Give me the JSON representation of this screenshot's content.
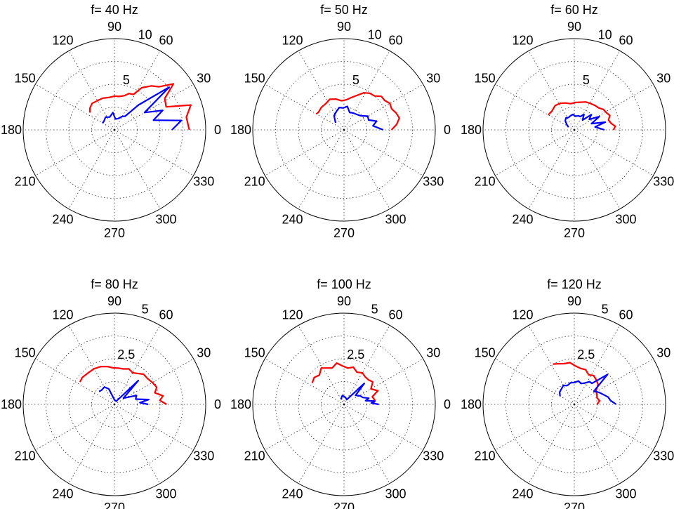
{
  "colors": {
    "red_series": "#ff0000",
    "blue_series": "#0000ff",
    "axis": "#000000",
    "background": "#ffffff"
  },
  "chart_data": [
    {
      "type": "polar",
      "title": "f= 40 Hz",
      "rlim": [
        0,
        10
      ],
      "rticks": [
        "5",
        "10"
      ],
      "angle_ticks": [
        "0",
        "30",
        "60",
        "90",
        "120",
        "150",
        "180",
        "210",
        "240",
        "270",
        "300",
        "330"
      ],
      "grid": true,
      "series": [
        {
          "color": "red",
          "points": [
            [
              0,
              8.2
            ],
            [
              10,
              8.0
            ],
            [
              18,
              8.8
            ],
            [
              24,
              6.2
            ],
            [
              32,
              6.5
            ],
            [
              38,
              8.2
            ],
            [
              44,
              6.8
            ],
            [
              50,
              6.3
            ],
            [
              57,
              5.5
            ],
            [
              62,
              4.4
            ],
            [
              68,
              4.3
            ],
            [
              74,
              3.9
            ],
            [
              82,
              3.7
            ],
            [
              90,
              3.7
            ],
            [
              100,
              3.6
            ],
            [
              110,
              3.7
            ],
            [
              120,
              3.7
            ],
            [
              130,
              3.8
            ],
            [
              138,
              3.6
            ],
            [
              145,
              3.3
            ]
          ]
        },
        {
          "color": "blue",
          "points": [
            [
              0,
              6.3
            ],
            [
              8,
              7.4
            ],
            [
              14,
              4.4
            ],
            [
              22,
              5.7
            ],
            [
              30,
              3.8
            ],
            [
              38,
              7.6
            ],
            [
              46,
              3.8
            ],
            [
              52,
              1.9
            ],
            [
              60,
              1.7
            ],
            [
              72,
              1.3
            ],
            [
              85,
              1.2
            ],
            [
              95,
              1.9
            ],
            [
              110,
              1.5
            ],
            [
              125,
              1.7
            ],
            [
              140,
              1.5
            ],
            [
              150,
              1.5
            ]
          ]
        }
      ]
    },
    {
      "type": "polar",
      "title": "f= 50 Hz",
      "rlim": [
        0,
        10
      ],
      "rticks": [
        "5",
        "10"
      ],
      "angle_ticks": [
        "0",
        "30",
        "60",
        "90",
        "120",
        "150",
        "180",
        "210",
        "240",
        "270",
        "300",
        "330"
      ],
      "grid": true,
      "series": [
        {
          "color": "red",
          "points": [
            [
              0,
              5.2
            ],
            [
              6,
              5.8
            ],
            [
              12,
              6.2
            ],
            [
              18,
              6.0
            ],
            [
              24,
              5.7
            ],
            [
              30,
              5.8
            ],
            [
              36,
              5.5
            ],
            [
              42,
              5.5
            ],
            [
              48,
              5.0
            ],
            [
              55,
              4.9
            ],
            [
              62,
              4.6
            ],
            [
              70,
              4.0
            ],
            [
              78,
              3.6
            ],
            [
              86,
              3.3
            ],
            [
              95,
              3.2
            ],
            [
              105,
              3.5
            ],
            [
              115,
              3.7
            ],
            [
              125,
              3.5
            ],
            [
              135,
              3.5
            ],
            [
              145,
              3.4
            ],
            [
              150,
              3.5
            ]
          ]
        },
        {
          "color": "blue",
          "points": [
            [
              0,
              4.3
            ],
            [
              8,
              3.2
            ],
            [
              15,
              3.7
            ],
            [
              22,
              2.9
            ],
            [
              30,
              3.0
            ],
            [
              40,
              2.4
            ],
            [
              50,
              2.2
            ],
            [
              62,
              2.1
            ],
            [
              72,
              2.0
            ],
            [
              82,
              2.6
            ],
            [
              92,
              2.4
            ],
            [
              102,
              2.5
            ],
            [
              112,
              2.2
            ],
            [
              125,
              1.9
            ],
            [
              140,
              1.2
            ]
          ]
        }
      ]
    },
    {
      "type": "polar",
      "title": "f= 60 Hz",
      "rlim": [
        0,
        10
      ],
      "rticks": [
        "5",
        "10"
      ],
      "angle_ticks": [
        "0",
        "30",
        "60",
        "90",
        "120",
        "150",
        "180",
        "210",
        "240",
        "270",
        "300",
        "330"
      ],
      "grid": true,
      "series": [
        {
          "color": "red",
          "points": [
            [
              0,
              4.3
            ],
            [
              5,
              4.5
            ],
            [
              10,
              4.1
            ],
            [
              16,
              3.9
            ],
            [
              22,
              4.2
            ],
            [
              28,
              4.0
            ],
            [
              35,
              3.9
            ],
            [
              42,
              3.6
            ],
            [
              50,
              3.5
            ],
            [
              58,
              3.4
            ],
            [
              68,
              3.3
            ],
            [
              78,
              3.1
            ],
            [
              88,
              3.0
            ],
            [
              98,
              2.9
            ],
            [
              108,
              3.1
            ],
            [
              118,
              3.3
            ],
            [
              128,
              3.4
            ],
            [
              140,
              3.2
            ],
            [
              150,
              3.3
            ]
          ]
        },
        {
          "color": "blue",
          "points": [
            [
              0,
              3.3
            ],
            [
              8,
              2.3
            ],
            [
              14,
              3.5
            ],
            [
              20,
              2.0
            ],
            [
              28,
              3.1
            ],
            [
              35,
              2.0
            ],
            [
              42,
              2.5
            ],
            [
              50,
              1.4
            ],
            [
              58,
              2.0
            ],
            [
              66,
              1.6
            ],
            [
              75,
              1.6
            ],
            [
              85,
              1.5
            ],
            [
              95,
              1.7
            ],
            [
              105,
              1.6
            ],
            [
              115,
              1.5
            ],
            [
              125,
              1.6
            ],
            [
              135,
              1.4
            ],
            [
              145,
              1.0
            ],
            [
              155,
              0.7
            ]
          ]
        }
      ]
    },
    {
      "type": "polar",
      "title": "f= 80 Hz",
      "rlim": [
        0,
        5
      ],
      "rticks": [
        "2.5",
        "5"
      ],
      "angle_ticks": [
        "0",
        "30",
        "60",
        "90",
        "120",
        "150",
        "180",
        "210",
        "240",
        "270",
        "300",
        "330"
      ],
      "grid": true,
      "series": [
        {
          "color": "red",
          "points": [
            [
              0,
              2.85
            ],
            [
              5,
              2.5
            ],
            [
              10,
              2.7
            ],
            [
              16,
              2.3
            ],
            [
              22,
              2.5
            ],
            [
              30,
              2.4
            ],
            [
              38,
              2.3
            ],
            [
              46,
              2.3
            ],
            [
              54,
              2.1
            ],
            [
              60,
              2.0
            ],
            [
              68,
              2.1
            ],
            [
              76,
              2.0
            ],
            [
              84,
              2.0
            ],
            [
              92,
              2.0
            ],
            [
              100,
              2.1
            ],
            [
              110,
              2.2
            ],
            [
              120,
              2.25
            ],
            [
              130,
              2.25
            ],
            [
              140,
              2.3
            ],
            [
              147,
              2.25
            ]
          ]
        },
        {
          "color": "blue",
          "points": [
            [
              0,
              1.85
            ],
            [
              4,
              1.4
            ],
            [
              8,
              1.9
            ],
            [
              14,
              1.2
            ],
            [
              22,
              1.3
            ],
            [
              35,
              0.6
            ],
            [
              45,
              1.85
            ],
            [
              60,
              0.2
            ],
            [
              90,
              0.25
            ],
            [
              110,
              0.9
            ],
            [
              120,
              1.1
            ],
            [
              132,
              1.05
            ],
            [
              140,
              1.1
            ]
          ]
        }
      ]
    },
    {
      "type": "polar",
      "title": "f= 100 Hz",
      "rlim": [
        0,
        5
      ],
      "rticks": [
        "2.5",
        "5"
      ],
      "angle_ticks": [
        "0",
        "30",
        "60",
        "90",
        "120",
        "150",
        "180",
        "210",
        "240",
        "270",
        "300",
        "330"
      ],
      "grid": true,
      "series": [
        {
          "color": "red",
          "points": [
            [
              0,
              1.6
            ],
            [
              8,
              1.7
            ],
            [
              15,
              1.6
            ],
            [
              22,
              2.0
            ],
            [
              30,
              1.7
            ],
            [
              38,
              2.0
            ],
            [
              45,
              1.9
            ],
            [
              52,
              1.9
            ],
            [
              60,
              2.0
            ],
            [
              68,
              1.9
            ],
            [
              76,
              2.1
            ],
            [
              84,
              2.0
            ],
            [
              92,
              2.1
            ],
            [
              100,
              2.3
            ],
            [
              108,
              2.1
            ],
            [
              115,
              2.2
            ],
            [
              122,
              2.35
            ],
            [
              130,
              2.1
            ],
            [
              138,
              2.2
            ],
            [
              146,
              2.1
            ]
          ]
        },
        {
          "color": "blue",
          "points": [
            [
              0,
              1.9
            ],
            [
              3,
              1.5
            ],
            [
              6,
              1.7
            ],
            [
              10,
              1.2
            ],
            [
              14,
              1.4
            ],
            [
              20,
              1.1
            ],
            [
              28,
              1.0
            ],
            [
              38,
              0.8
            ],
            [
              46,
              1.6
            ],
            [
              60,
              0.3
            ],
            [
              80,
              0.4
            ],
            [
              100,
              0.5
            ],
            [
              110,
              0.4
            ],
            [
              120,
              0.3
            ]
          ]
        }
      ]
    },
    {
      "type": "polar",
      "title": "f= 120 Hz",
      "rlim": [
        0,
        5
      ],
      "rticks": [
        "2.5",
        "5"
      ],
      "angle_ticks": [
        "0",
        "30",
        "60",
        "90",
        "120",
        "150",
        "180",
        "210",
        "240",
        "270",
        "300",
        "330"
      ],
      "grid": true,
      "series": [
        {
          "color": "red",
          "points": [
            [
              0,
              1.25
            ],
            [
              8,
              1.4
            ],
            [
              16,
              1.3
            ],
            [
              24,
              1.35
            ],
            [
              32,
              1.4
            ],
            [
              40,
              1.7
            ],
            [
              48,
              1.8
            ],
            [
              56,
              1.9
            ],
            [
              64,
              1.8
            ],
            [
              72,
              2.0
            ],
            [
              80,
              2.0
            ],
            [
              88,
              2.1
            ],
            [
              96,
              2.3
            ],
            [
              104,
              2.3
            ],
            [
              112,
              2.4
            ],
            [
              118,
              2.5
            ]
          ]
        },
        {
          "color": "blue",
          "points": [
            [
              0,
              2.3
            ],
            [
              6,
              2.0
            ],
            [
              12,
              1.9
            ],
            [
              18,
              1.7
            ],
            [
              26,
              1.5
            ],
            [
              34,
              1.3
            ],
            [
              42,
              2.45
            ],
            [
              50,
              1.5
            ],
            [
              56,
              1.5
            ],
            [
              64,
              1.3
            ],
            [
              72,
              1.2
            ],
            [
              80,
              1.3
            ],
            [
              90,
              1.2
            ],
            [
              100,
              1.2
            ],
            [
              110,
              1.1
            ],
            [
              120,
              1.2
            ],
            [
              130,
              1.1
            ],
            [
              140,
              1.05
            ],
            [
              150,
              0.9
            ]
          ]
        }
      ]
    }
  ]
}
